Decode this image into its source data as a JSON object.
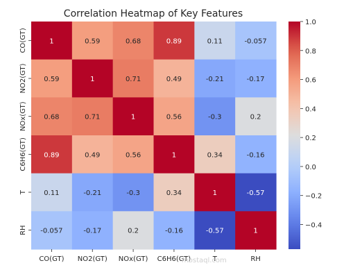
{
  "chart_data": {
    "type": "heatmap",
    "title": "Correlation Heatmap of Key Features",
    "xlabel": "",
    "ylabel": "",
    "x_categories": [
      "CO(GT)",
      "NO2(GT)",
      "NOx(GT)",
      "C6H6(GT)",
      "T",
      "RH"
    ],
    "y_categories": [
      "CO(GT)",
      "NO2(GT)",
      "NOx(GT)",
      "C6H6(GT)",
      "T",
      "RH"
    ],
    "values": [
      [
        1,
        0.59,
        0.68,
        0.89,
        0.11,
        -0.057
      ],
      [
        0.59,
        1,
        0.71,
        0.49,
        -0.21,
        -0.17
      ],
      [
        0.68,
        0.71,
        1,
        0.56,
        -0.3,
        0.2
      ],
      [
        0.89,
        0.49,
        0.56,
        1,
        0.34,
        -0.16
      ],
      [
        0.11,
        -0.21,
        -0.3,
        0.34,
        1,
        -0.57
      ],
      [
        -0.057,
        -0.17,
        0.2,
        -0.16,
        -0.57,
        1
      ]
    ],
    "colormap": "coolwarm",
    "vmin": -0.57,
    "vmax": 1,
    "colorbar_ticks": [
      1.0,
      0.8,
      0.6,
      0.4,
      0.2,
      0.0,
      -0.2,
      -0.4
    ],
    "colorbar_tick_labels": [
      "1.0",
      "0.8",
      "0.6",
      "0.4",
      "0.2",
      "0.0",
      "−0.2",
      "−0.4"
    ],
    "grid": false,
    "annotations": true
  },
  "watermark": "mostaql.com"
}
